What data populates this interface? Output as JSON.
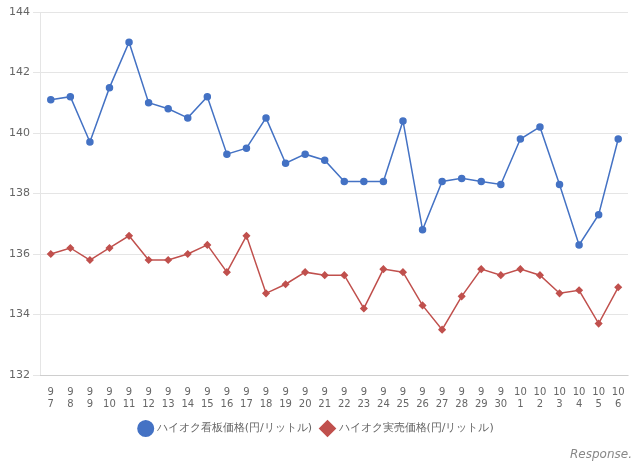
{
  "chart_data": {
    "type": "line",
    "categories": [
      "9\n7",
      "9\n8",
      "9\n9",
      "9\n10",
      "9\n11",
      "9\n12",
      "9\n13",
      "9\n14",
      "9\n15",
      "9\n16",
      "9\n17",
      "9\n18",
      "9\n19",
      "9\n20",
      "9\n21",
      "9\n22",
      "9\n23",
      "9\n24",
      "9\n25",
      "9\n26",
      "9\n27",
      "9\n28",
      "9\n29",
      "9\n30",
      "10\n1",
      "10\n2",
      "10\n3",
      "10\n4",
      "10\n5",
      "10\n6"
    ],
    "series": [
      {
        "name": "ハイオク看板価格(円/リットル)",
        "color": "#4472C4",
        "marker": "circle",
        "line_style": "solid",
        "values": [
          141.1,
          141.2,
          139.7,
          141.5,
          143.0,
          141.0,
          140.8,
          140.5,
          141.2,
          139.3,
          139.5,
          140.5,
          139.0,
          139.3,
          139.1,
          138.4,
          138.4,
          138.4,
          140.4,
          136.8,
          138.4,
          138.5,
          138.4,
          138.3,
          139.8,
          140.2,
          138.3,
          136.3,
          137.3,
          139.8
        ]
      },
      {
        "name": "ハイオク実売価格(円/リットル)",
        "color": "#C0504D",
        "marker": "diamond",
        "line_style": "solid",
        "values": [
          136.0,
          136.2,
          135.8,
          136.2,
          136.6,
          135.8,
          135.8,
          136.0,
          136.3,
          135.4,
          136.6,
          134.7,
          135.0,
          135.4,
          135.3,
          135.3,
          134.2,
          135.5,
          135.4,
          134.3,
          133.5,
          134.6,
          135.5,
          135.3,
          135.5,
          135.3,
          134.7,
          134.8,
          133.7,
          134.9
        ]
      }
    ],
    "ylim": [
      132,
      144
    ],
    "yticks": [
      132,
      134,
      136,
      138,
      140,
      142,
      144
    ],
    "grid": "y",
    "legend": "bottom",
    "annotations": [
      "Response."
    ]
  }
}
